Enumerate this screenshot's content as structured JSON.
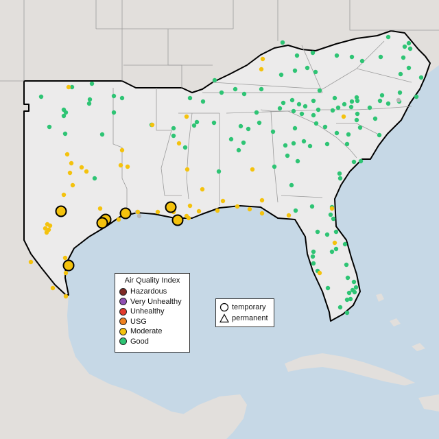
{
  "map": {
    "region": "Southeastern United States and Gulf of Mexico",
    "colors": {
      "ocean": "#c6d8e6",
      "land": "#ecebeb",
      "outside_land": "#e2dfdc",
      "region_border": "#000000",
      "state_lines": "#9a9a9a"
    }
  },
  "legend": {
    "title": "Air Quality Index",
    "categories": [
      {
        "label": "Hazardous",
        "color": "#7e2a25"
      },
      {
        "label": "Very Unhealthy",
        "color": "#8f4fb2"
      },
      {
        "label": "Unhealthy",
        "color": "#e23a2d"
      },
      {
        "label": "USG",
        "color": "#ee8121"
      },
      {
        "label": "Moderate",
        "color": "#f4c20d"
      },
      {
        "label": "Good",
        "color": "#2ec474"
      }
    ],
    "shape_legend": [
      {
        "label": "temporary",
        "shape": "circle"
      },
      {
        "label": "permanent",
        "shape": "triangle"
      }
    ]
  },
  "monitors": {
    "large_moderate": [
      [
        89,
        308
      ],
      [
        152,
        322
      ],
      [
        154,
        320
      ],
      [
        149,
        325
      ],
      [
        183,
        311
      ],
      [
        249,
        302
      ],
      [
        259,
        321
      ],
      [
        100,
        387
      ]
    ],
    "moderate": [
      [
        100,
        127
      ],
      [
        98,
        225
      ],
      [
        104,
        238
      ],
      [
        119,
        244
      ],
      [
        126,
        250
      ],
      [
        102,
        252
      ],
      [
        106,
        270
      ],
      [
        93,
        284
      ],
      [
        178,
        219
      ],
      [
        176,
        241
      ],
      [
        186,
        243
      ],
      [
        146,
        304
      ],
      [
        178,
        313
      ],
      [
        173,
        320
      ],
      [
        230,
        309
      ],
      [
        261,
        209
      ],
      [
        273,
        247
      ],
      [
        272,
        170
      ],
      [
        295,
        276
      ],
      [
        277,
        300
      ],
      [
        272,
        315
      ],
      [
        275,
        318
      ],
      [
        290,
        308
      ],
      [
        317,
        307
      ],
      [
        325,
        293
      ],
      [
        346,
        301
      ],
      [
        364,
        305
      ],
      [
        382,
        292
      ],
      [
        382,
        311
      ],
      [
        421,
        314
      ],
      [
        368,
        247
      ],
      [
        69,
        327
      ],
      [
        73,
        329
      ],
      [
        66,
        333
      ],
      [
        71,
        335
      ],
      [
        68,
        339
      ],
      [
        45,
        382
      ],
      [
        95,
        376
      ],
      [
        96,
        398
      ],
      [
        77,
        420
      ],
      [
        96,
        432
      ],
      [
        383,
        86
      ],
      [
        381,
        101
      ],
      [
        501,
        170
      ],
      [
        484,
        304
      ],
      [
        488,
        354
      ],
      [
        466,
        398
      ],
      [
        222,
        182
      ],
      [
        201,
        309
      ],
      [
        253,
        309
      ]
    ],
    "good": [
      [
        60,
        141
      ],
      [
        105,
        127
      ],
      [
        134,
        122
      ],
      [
        93,
        160
      ],
      [
        96,
        164
      ],
      [
        93,
        169
      ],
      [
        130,
        151
      ],
      [
        131,
        145
      ],
      [
        166,
        140
      ],
      [
        178,
        143
      ],
      [
        166,
        164
      ],
      [
        221,
        182
      ],
      [
        72,
        185
      ],
      [
        95,
        195
      ],
      [
        149,
        196
      ],
      [
        138,
        260
      ],
      [
        253,
        198
      ],
      [
        253,
        187
      ],
      [
        277,
        143
      ],
      [
        296,
        148
      ],
      [
        287,
        178
      ],
      [
        270,
        215
      ],
      [
        283,
        183
      ],
      [
        351,
        184
      ],
      [
        337,
        203
      ],
      [
        348,
        219
      ],
      [
        362,
        188
      ],
      [
        355,
        208
      ],
      [
        312,
        179
      ],
      [
        319,
        250
      ],
      [
        400,
        243
      ],
      [
        398,
        192
      ],
      [
        378,
        179
      ],
      [
        374,
        164
      ],
      [
        343,
        130
      ],
      [
        356,
        137
      ],
      [
        323,
        135
      ],
      [
        313,
        117
      ],
      [
        381,
        130
      ],
      [
        410,
        109
      ],
      [
        430,
        103
      ],
      [
        433,
        81
      ],
      [
        412,
        62
      ],
      [
        456,
        77
      ],
      [
        448,
        99
      ],
      [
        460,
        105
      ],
      [
        466,
        132
      ],
      [
        457,
        147
      ],
      [
        491,
        81
      ],
      [
        513,
        83
      ],
      [
        528,
        89
      ],
      [
        555,
        83
      ],
      [
        566,
        54
      ],
      [
        588,
        84
      ],
      [
        590,
        68
      ],
      [
        596,
        63
      ],
      [
        598,
        71
      ],
      [
        596,
        99
      ],
      [
        584,
        108
      ],
      [
        614,
        113
      ],
      [
        607,
        141
      ],
      [
        583,
        135
      ],
      [
        557,
        139
      ],
      [
        520,
        142
      ],
      [
        513,
        148
      ],
      [
        502,
        152
      ],
      [
        493,
        157
      ],
      [
        488,
        143
      ],
      [
        512,
        156
      ],
      [
        485,
        161
      ],
      [
        464,
        160
      ],
      [
        445,
        155
      ],
      [
        426,
        146
      ],
      [
        413,
        150
      ],
      [
        408,
        158
      ],
      [
        428,
        162
      ],
      [
        436,
        152
      ],
      [
        440,
        166
      ],
      [
        457,
        168
      ],
      [
        461,
        180
      ],
      [
        474,
        185
      ],
      [
        491,
        194
      ],
      [
        508,
        196
      ],
      [
        506,
        210
      ],
      [
        525,
        186
      ],
      [
        539,
        157
      ],
      [
        547,
        173
      ],
      [
        554,
        147
      ],
      [
        566,
        151
      ],
      [
        553,
        197
      ],
      [
        582,
        148
      ],
      [
        430,
        187
      ],
      [
        443,
        206
      ],
      [
        428,
        209
      ],
      [
        416,
        212
      ],
      [
        419,
        227
      ],
      [
        434,
        235
      ],
      [
        452,
        213
      ],
      [
        477,
        210
      ],
      [
        520,
        175
      ],
      [
        521,
        166
      ],
      [
        521,
        147
      ],
      [
        516,
        236
      ],
      [
        526,
        235
      ],
      [
        495,
        253
      ],
      [
        496,
        260
      ],
      [
        425,
        270
      ],
      [
        431,
        307
      ],
      [
        455,
        301
      ],
      [
        484,
        302
      ],
      [
        482,
        313
      ],
      [
        463,
        338
      ],
      [
        477,
        342
      ],
      [
        490,
        338
      ],
      [
        457,
        367
      ],
      [
        456,
        374
      ],
      [
        457,
        384
      ],
      [
        463,
        395
      ],
      [
        484,
        367
      ],
      [
        503,
        356
      ],
      [
        505,
        386
      ],
      [
        507,
        405
      ],
      [
        516,
        411
      ],
      [
        514,
        423
      ],
      [
        517,
        426
      ],
      [
        519,
        419
      ],
      [
        511,
        436
      ],
      [
        506,
        437
      ],
      [
        509,
        427
      ],
      [
        506,
        456
      ],
      [
        496,
        448
      ],
      [
        478,
        420
      ],
      [
        490,
        363
      ],
      [
        486,
        319
      ]
    ],
    "gray": [
      [
        200,
        309
      ],
      [
        203,
        315
      ],
      [
        581,
        146
      ]
    ]
  }
}
